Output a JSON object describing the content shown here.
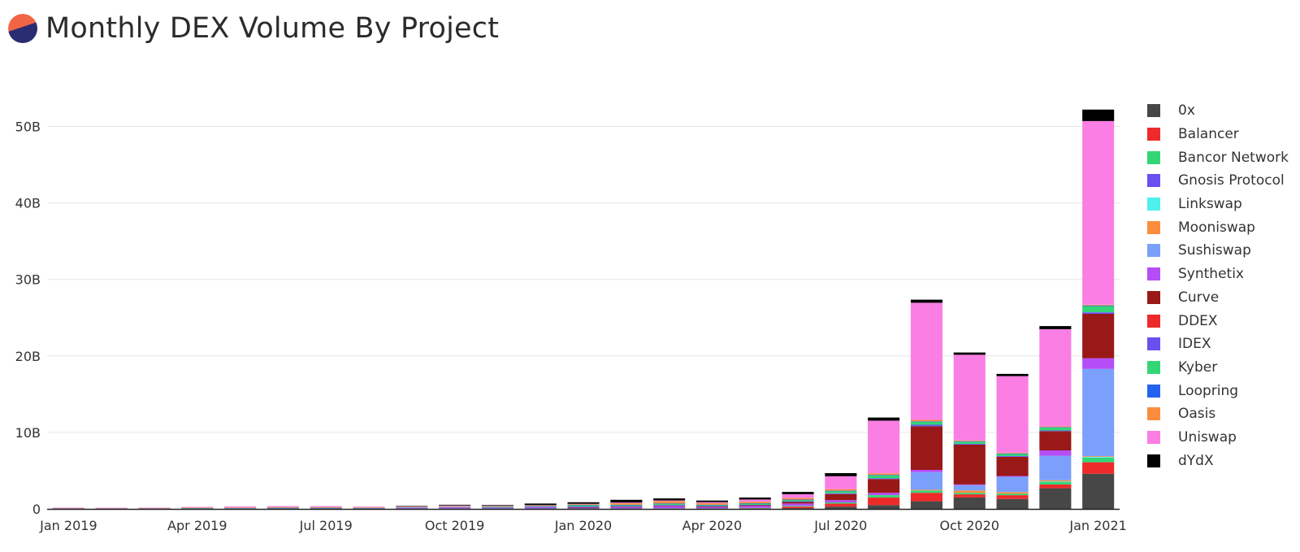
{
  "header": {
    "title": "Monthly DEX Volume By Project",
    "logo_colors": {
      "top": "#f26544",
      "bottom": "#2b2d72"
    }
  },
  "chart_data": {
    "type": "bar",
    "stacked": true,
    "title": "Monthly DEX Volume By Project",
    "xlabel": "",
    "ylabel": "",
    "ylim": [
      0,
      55
    ],
    "y_unit": "B",
    "y_ticks": [
      0,
      10,
      20,
      30,
      40,
      50
    ],
    "y_tick_labels": [
      "0",
      "10B",
      "20B",
      "30B",
      "40B",
      "50B"
    ],
    "x_tick_labels": [
      "Jan 2019",
      "Apr 2019",
      "Jul 2019",
      "Oct 2019",
      "Jan 2020",
      "Apr 2020",
      "Jul 2020",
      "Oct 2020",
      "Jan 2021"
    ],
    "x_tick_category_index": [
      0,
      3,
      6,
      9,
      12,
      15,
      18,
      21,
      24
    ],
    "grid": true,
    "legend_position": "right",
    "categories": [
      "2019-01",
      "2019-02",
      "2019-03",
      "2019-04",
      "2019-05",
      "2019-06",
      "2019-07",
      "2019-08",
      "2019-09",
      "2019-10",
      "2019-11",
      "2019-12",
      "2020-01",
      "2020-02",
      "2020-03",
      "2020-04",
      "2020-05",
      "2020-06",
      "2020-07",
      "2020-08",
      "2020-09",
      "2020-10",
      "2020-11",
      "2020-12",
      "2021-01"
    ],
    "series": [
      {
        "name": "0x",
        "color": "#474747",
        "values": [
          0,
          0,
          0,
          0,
          0,
          0,
          0,
          0,
          0,
          0,
          0,
          0,
          0,
          0,
          0,
          0,
          0.05,
          0.1,
          0.3,
          0.5,
          1.0,
          1.5,
          1.3,
          2.7,
          4.6
        ]
      },
      {
        "name": "Balancer",
        "color": "#ee2a2a",
        "values": [
          0,
          0,
          0,
          0,
          0,
          0,
          0,
          0,
          0,
          0,
          0,
          0,
          0,
          0,
          0,
          0,
          0.02,
          0.2,
          0.4,
          1.0,
          1.1,
          0.4,
          0.5,
          0.5,
          1.5
        ]
      },
      {
        "name": "Bancor Network",
        "color": "#34d576",
        "values": [
          0.05,
          0.04,
          0.04,
          0.04,
          0.05,
          0.05,
          0.05,
          0.04,
          0.04,
          0.04,
          0.05,
          0.05,
          0.05,
          0.05,
          0.06,
          0.05,
          0.06,
          0.1,
          0.15,
          0.3,
          0.3,
          0.2,
          0.2,
          0.35,
          0.6
        ]
      },
      {
        "name": "Gnosis Protocol",
        "color": "#6b50f0",
        "values": [
          0,
          0,
          0,
          0,
          0,
          0,
          0,
          0,
          0,
          0,
          0,
          0,
          0,
          0,
          0,
          0,
          0,
          0,
          0,
          0,
          0,
          0,
          0,
          0,
          0
        ]
      },
      {
        "name": "Linkswap",
        "color": "#4ef0ec",
        "values": [
          0,
          0,
          0,
          0,
          0,
          0,
          0,
          0,
          0,
          0,
          0,
          0,
          0,
          0,
          0,
          0,
          0,
          0,
          0,
          0,
          0,
          0,
          0,
          0.05,
          0.1
        ]
      },
      {
        "name": "Mooniswap",
        "color": "#fb8d3d",
        "values": [
          0,
          0,
          0,
          0,
          0,
          0,
          0,
          0,
          0,
          0,
          0,
          0,
          0,
          0,
          0,
          0,
          0,
          0,
          0,
          0,
          0.1,
          0.3,
          0.2,
          0.15,
          0.1
        ]
      },
      {
        "name": "Sushiswap",
        "color": "#7ba0fb",
        "values": [
          0,
          0,
          0,
          0,
          0,
          0,
          0,
          0,
          0,
          0,
          0,
          0,
          0,
          0,
          0,
          0,
          0,
          0,
          0,
          0,
          2.3,
          0.7,
          2.0,
          3.2,
          11.4
        ]
      },
      {
        "name": "Synthetix",
        "color": "#b54ef6",
        "values": [
          0.01,
          0.01,
          0.01,
          0.02,
          0.02,
          0.05,
          0.05,
          0.05,
          0.1,
          0.15,
          0.1,
          0.15,
          0.15,
          0.2,
          0.3,
          0.2,
          0.25,
          0.3,
          0.3,
          0.3,
          0.3,
          0.1,
          0.1,
          0.7,
          1.4
        ]
      },
      {
        "name": "Curve",
        "color": "#991818",
        "values": [
          0,
          0,
          0,
          0,
          0,
          0,
          0,
          0,
          0,
          0,
          0,
          0,
          0.01,
          0.05,
          0.05,
          0.08,
          0.1,
          0.2,
          0.8,
          1.8,
          5.7,
          5.2,
          2.5,
          2.5,
          5.8
        ]
      },
      {
        "name": "DDEX",
        "color": "#ee2a2a",
        "values": [
          0,
          0,
          0,
          0,
          0,
          0,
          0,
          0,
          0,
          0,
          0,
          0,
          0,
          0,
          0,
          0,
          0,
          0,
          0,
          0,
          0,
          0,
          0,
          0,
          0
        ]
      },
      {
        "name": "IDEX",
        "color": "#6b50f0",
        "values": [
          0.01,
          0.01,
          0.01,
          0.01,
          0.01,
          0.01,
          0.01,
          0.01,
          0.05,
          0.05,
          0.05,
          0.1,
          0.1,
          0.08,
          0.1,
          0.05,
          0.05,
          0.1,
          0.1,
          0.1,
          0.2,
          0.1,
          0.1,
          0.1,
          0.2
        ]
      },
      {
        "name": "Kyber",
        "color": "#34d576",
        "values": [
          0.05,
          0.04,
          0.04,
          0.05,
          0.05,
          0.05,
          0.05,
          0.05,
          0.05,
          0.05,
          0.1,
          0.1,
          0.2,
          0.15,
          0.2,
          0.15,
          0.2,
          0.2,
          0.3,
          0.4,
          0.4,
          0.3,
          0.3,
          0.4,
          0.8
        ]
      },
      {
        "name": "Loopring",
        "color": "#2463f0",
        "values": [
          0,
          0,
          0,
          0,
          0,
          0,
          0,
          0,
          0,
          0,
          0,
          0,
          0.01,
          0.01,
          0.01,
          0.01,
          0.01,
          0.02,
          0.03,
          0.05,
          0.05,
          0.05,
          0.05,
          0.05,
          0.1
        ]
      },
      {
        "name": "Oasis",
        "color": "#fb8d3d",
        "values": [
          0.02,
          0.02,
          0.03,
          0.05,
          0.05,
          0.05,
          0.05,
          0.05,
          0.05,
          0.05,
          0.05,
          0.05,
          0.1,
          0.2,
          0.3,
          0.2,
          0.2,
          0.2,
          0.2,
          0.2,
          0.2,
          0.1,
          0.1,
          0.1,
          0.1
        ]
      },
      {
        "name": "Uniswap",
        "color": "#fb7ee4",
        "values": [
          0.01,
          0.02,
          0.03,
          0.1,
          0.15,
          0.15,
          0.15,
          0.1,
          0.05,
          0.1,
          0.05,
          0.05,
          0.05,
          0.1,
          0.1,
          0.15,
          0.3,
          0.5,
          1.7,
          6.9,
          15.3,
          11.2,
          10.0,
          12.7,
          24.0
        ]
      },
      {
        "name": "dYdX",
        "color": "#000000",
        "values": [
          0,
          0,
          0,
          0,
          0,
          0,
          0,
          0,
          0.05,
          0.1,
          0.1,
          0.2,
          0.2,
          0.35,
          0.25,
          0.2,
          0.25,
          0.3,
          0.4,
          0.4,
          0.4,
          0.3,
          0.3,
          0.4,
          1.5
        ]
      }
    ]
  }
}
